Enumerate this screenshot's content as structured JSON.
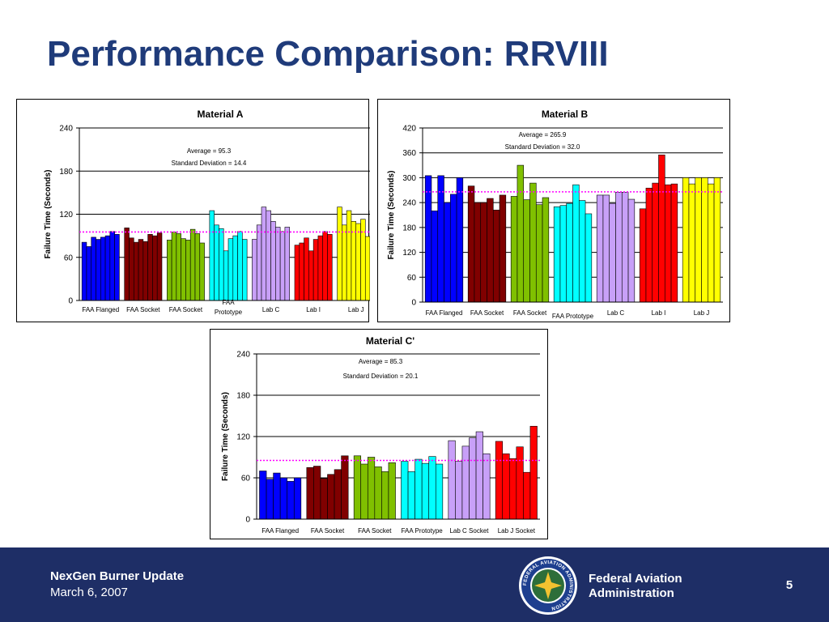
{
  "slide": {
    "title": "Performance Comparison:  RRVIII"
  },
  "footer": {
    "title": "NexGen Burner Update",
    "date": "March 6, 2007",
    "agency_line1": "Federal Aviation",
    "agency_line2": "Administration",
    "page_number": "5",
    "seal_text": "FEDERAL AVIATION ADMINISTRATION",
    "background_color": "#1e2e66"
  },
  "colors": {
    "title": "#1f3b7a",
    "average_line": "#ff00ff",
    "groups": [
      "#0000ff",
      "#800000",
      "#80c000",
      "#00ffff",
      "#c8a0f8",
      "#ff0000",
      "#ffff00"
    ]
  },
  "chart_data": [
    {
      "id": "material-a",
      "type": "bar",
      "title": "Material A",
      "ylabel": "Failure Time (Seconds)",
      "ylim": [
        0,
        240
      ],
      "yticks": [
        0,
        60,
        120,
        180,
        240
      ],
      "grid": true,
      "average": 95.3,
      "annotations": [
        "Average = 95.3",
        "Standard Deviation = 14.4"
      ],
      "groups": [
        {
          "label": "FAA Flanged",
          "values": [
            81,
            75,
            88,
            85,
            88,
            90,
            96,
            92
          ]
        },
        {
          "label": "FAA Socket",
          "values": [
            101,
            87,
            81,
            85,
            82,
            92,
            90,
            94
          ]
        },
        {
          "label": "FAA Socket",
          "values": [
            84,
            95,
            93,
            86,
            84,
            99,
            93,
            80
          ]
        },
        {
          "label": "FAA Prototype",
          "values": [
            125,
            105,
            100,
            69,
            86,
            90,
            96,
            85
          ]
        },
        {
          "label": "Lab C",
          "values": [
            85,
            105,
            130,
            125,
            110,
            102,
            96,
            102
          ]
        },
        {
          "label": "Lab I",
          "values": [
            77,
            80,
            87,
            69,
            85,
            90,
            96,
            92
          ]
        },
        {
          "label": "Lab J",
          "values": [
            130,
            105,
            125,
            110,
            107,
            113,
            89,
            125
          ]
        }
      ]
    },
    {
      "id": "material-b",
      "type": "bar",
      "title": "Material B",
      "ylabel": "Failure Time (Seconds)",
      "ylim": [
        0,
        420
      ],
      "yticks": [
        0,
        60,
        120,
        180,
        240,
        300,
        360,
        420
      ],
      "grid": true,
      "average": 265.9,
      "annotations": [
        "Average = 265.9",
        "Standard Deviation = 32.0"
      ],
      "groups": [
        {
          "label": "FAA Flanged",
          "values": [
            305,
            220,
            305,
            240,
            260,
            300
          ]
        },
        {
          "label": "FAA Socket",
          "values": [
            280,
            240,
            240,
            250,
            222,
            258
          ]
        },
        {
          "label": "FAA Socket",
          "values": [
            255,
            330,
            247,
            287,
            235,
            252
          ]
        },
        {
          "label": "FAA Prototype",
          "values": [
            230,
            233,
            238,
            283,
            245,
            213
          ]
        },
        {
          "label": "Lab C",
          "values": [
            258,
            258,
            238,
            265,
            265,
            248
          ]
        },
        {
          "label": "Lab I",
          "values": [
            225,
            275,
            287,
            355,
            283,
            285
          ]
        },
        {
          "label": "Lab J",
          "values": [
            300,
            285,
            300,
            300,
            285,
            300
          ]
        }
      ]
    },
    {
      "id": "material-c",
      "type": "bar",
      "title": "Material C'",
      "ylabel": "Failure Time (Seconds)",
      "ylim": [
        0,
        240
      ],
      "yticks": [
        0,
        60,
        120,
        180,
        240
      ],
      "grid": true,
      "average": 85.3,
      "annotations": [
        "Average = 85.3",
        "Standard Deviation = 20.1"
      ],
      "groups": [
        {
          "label": "FAA Flanged",
          "values": [
            70,
            58,
            67,
            60,
            55,
            60
          ]
        },
        {
          "label": "FAA Socket",
          "values": [
            75,
            77,
            59,
            65,
            72,
            92
          ]
        },
        {
          "label": "FAA Socket",
          "values": [
            92,
            80,
            90,
            76,
            69,
            82
          ]
        },
        {
          "label": "FAA Prototype",
          "values": [
            84,
            69,
            87,
            81,
            91,
            80
          ]
        },
        {
          "label": "Lab C Socket",
          "values": [
            114,
            84,
            106,
            118,
            127,
            95
          ]
        },
        {
          "label": "Lab J Socket",
          "values": [
            113,
            95,
            88,
            105,
            68,
            135
          ]
        }
      ]
    }
  ]
}
